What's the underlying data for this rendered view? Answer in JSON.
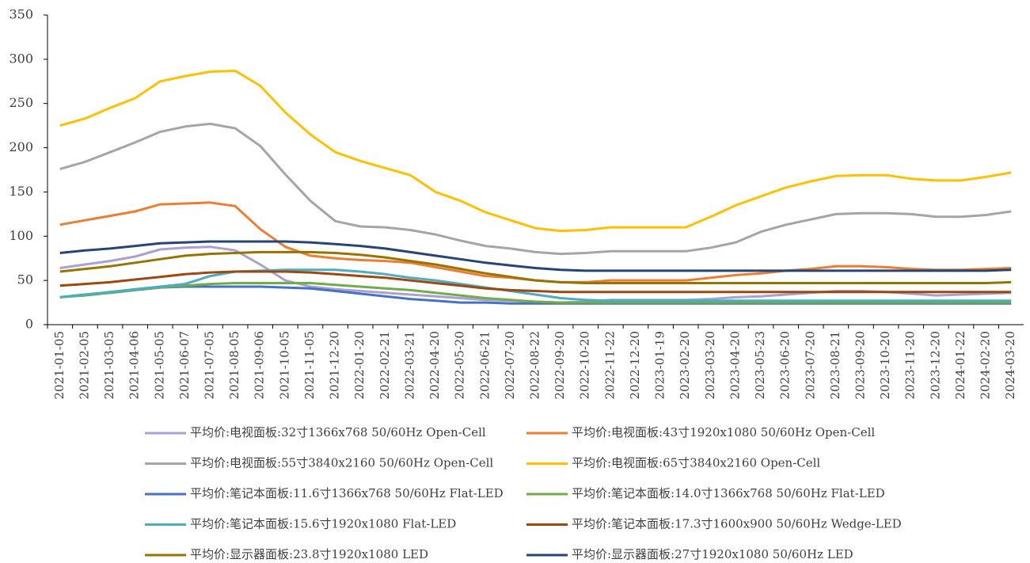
{
  "chart_data": {
    "type": "line",
    "categories": [
      "2021-01-05",
      "2021-02-05",
      "2021-03-05",
      "2021-04-06",
      "2021-05-05",
      "2021-06-07",
      "2021-07-05",
      "2021-08-05",
      "2021-09-06",
      "2021-10-05",
      "2021-11-05",
      "2021-12-20",
      "2022-01-20",
      "2022-02-21",
      "2022-03-21",
      "2022-04-20",
      "2022-05-20",
      "2022-06-21",
      "2022-07-20",
      "2022-08-22",
      "2022-09-20",
      "2022-10-20",
      "2022-11-22",
      "2022-12-20",
      "2023-01-19",
      "2023-02-20",
      "2023-03-20",
      "2023-04-20",
      "2023-05-23",
      "2023-06-20",
      "2023-07-20",
      "2023-08-21",
      "2023-09-20",
      "2023-10-20",
      "2023-11-20",
      "2023-12-20",
      "2024-01-22",
      "2024-02-20",
      "2024-03-20"
    ],
    "ylim": [
      0,
      350
    ],
    "yticks": [
      0,
      50,
      100,
      150,
      200,
      250,
      300,
      350
    ],
    "grid": false,
    "series": [
      {
        "name": "平均价:电视面板:32寸1366x768 50/60Hz Open-Cell",
        "color": "#ab9fd3",
        "values": [
          64,
          68,
          72,
          77,
          85,
          87,
          88,
          84,
          68,
          50,
          43,
          40,
          38,
          36,
          34,
          32,
          30,
          28,
          27,
          26,
          25,
          26,
          28,
          28,
          28,
          28,
          29,
          31,
          32,
          34,
          36,
          38,
          38,
          37,
          35,
          33,
          34,
          35,
          36
        ]
      },
      {
        "name": "平均价:电视面板:43寸1920x1080 50/60Hz Open-Cell",
        "color": "#ed7d31",
        "values": [
          113,
          118,
          123,
          128,
          136,
          137,
          138,
          134,
          108,
          88,
          78,
          75,
          73,
          72,
          70,
          65,
          60,
          55,
          53,
          50,
          48,
          48,
          50,
          50,
          50,
          50,
          53,
          56,
          58,
          61,
          63,
          66,
          66,
          65,
          63,
          62,
          62,
          63,
          64
        ]
      },
      {
        "name": "平均价:电视面板:55寸3840x2160 50/60Hz Open-Cell",
        "color": "#a5a5a5",
        "values": [
          176,
          184,
          195,
          206,
          218,
          224,
          227,
          222,
          202,
          170,
          140,
          117,
          111,
          110,
          107,
          102,
          95,
          89,
          86,
          82,
          80,
          81,
          83,
          83,
          83,
          83,
          87,
          93,
          105,
          113,
          119,
          125,
          126,
          126,
          125,
          122,
          122,
          124,
          128
        ]
      },
      {
        "name": "平均价:电视面板:65寸3840x2160 Open-Cell",
        "color": "#ffc000",
        "values": [
          225,
          233,
          245,
          256,
          275,
          281,
          286,
          287,
          270,
          240,
          215,
          195,
          185,
          177,
          169,
          150,
          140,
          127,
          118,
          109,
          106,
          107,
          110,
          110,
          110,
          110,
          122,
          135,
          145,
          155,
          162,
          168,
          169,
          169,
          165,
          163,
          163,
          167,
          172
        ]
      },
      {
        "name": "平均价:笔记本面板:11.6寸1366x768 50/60Hz Flat-LED",
        "color": "#4472c4",
        "values": [
          31,
          34,
          36,
          39,
          42,
          43,
          43,
          43,
          43,
          42,
          41,
          38,
          35,
          32,
          29,
          27,
          25,
          25,
          24,
          24,
          24,
          24,
          24,
          24,
          24,
          24,
          24,
          24,
          24,
          24,
          24,
          24,
          24,
          24,
          24,
          24,
          24,
          24,
          24
        ]
      },
      {
        "name": "平均价:笔记本面板:14.0寸1366x768 50/60Hz Flat-LED",
        "color": "#70ad47",
        "values": [
          31,
          33,
          36,
          39,
          42,
          44,
          46,
          47,
          47,
          47,
          47,
          45,
          43,
          41,
          39,
          36,
          33,
          30,
          28,
          26,
          25,
          25,
          25,
          25,
          25,
          25,
          25,
          25,
          25,
          25,
          25,
          25,
          25,
          25,
          25,
          25,
          25,
          25,
          25
        ]
      },
      {
        "name": "平均价:笔记本面板:15.6寸1920x1080 Flat-LED",
        "color": "#4bacc6",
        "values": [
          31,
          34,
          37,
          40,
          43,
          46,
          55,
          60,
          61,
          62,
          62,
          62,
          60,
          57,
          53,
          50,
          46,
          42,
          38,
          34,
          30,
          28,
          27,
          27,
          27,
          27,
          27,
          27,
          27,
          27,
          27,
          27,
          27,
          27,
          27,
          27,
          27,
          27,
          27
        ]
      },
      {
        "name": "平均价:笔记本面板:17.3寸1600x900 50/60Hz Wedge-LED",
        "color": "#9e480e",
        "values": [
          44,
          46,
          48,
          51,
          54,
          57,
          59,
          60,
          60,
          60,
          59,
          57,
          55,
          53,
          50,
          47,
          44,
          41,
          39,
          38,
          37,
          37,
          37,
          37,
          37,
          37,
          37,
          37,
          37,
          37,
          37,
          37,
          37,
          37,
          37,
          37,
          37,
          37,
          37
        ]
      },
      {
        "name": "平均价:显示器面板:23.8寸1920x1080 LED",
        "color": "#997300",
        "values": [
          60,
          63,
          66,
          70,
          74,
          78,
          80,
          81,
          82,
          82,
          82,
          81,
          79,
          76,
          72,
          68,
          63,
          58,
          54,
          50,
          48,
          47,
          47,
          47,
          47,
          47,
          47,
          47,
          47,
          47,
          47,
          47,
          47,
          47,
          47,
          47,
          47,
          47,
          48
        ]
      },
      {
        "name": "平均价:显示器面板:27寸1920x1080 50/60Hz LED",
        "color": "#264478",
        "values": [
          81,
          84,
          86,
          89,
          92,
          93,
          94,
          94,
          94,
          94,
          93,
          91,
          89,
          86,
          82,
          78,
          74,
          70,
          67,
          64,
          62,
          61,
          61,
          61,
          61,
          61,
          61,
          61,
          61,
          61,
          61,
          61,
          61,
          61,
          61,
          61,
          61,
          61,
          62
        ]
      }
    ]
  }
}
